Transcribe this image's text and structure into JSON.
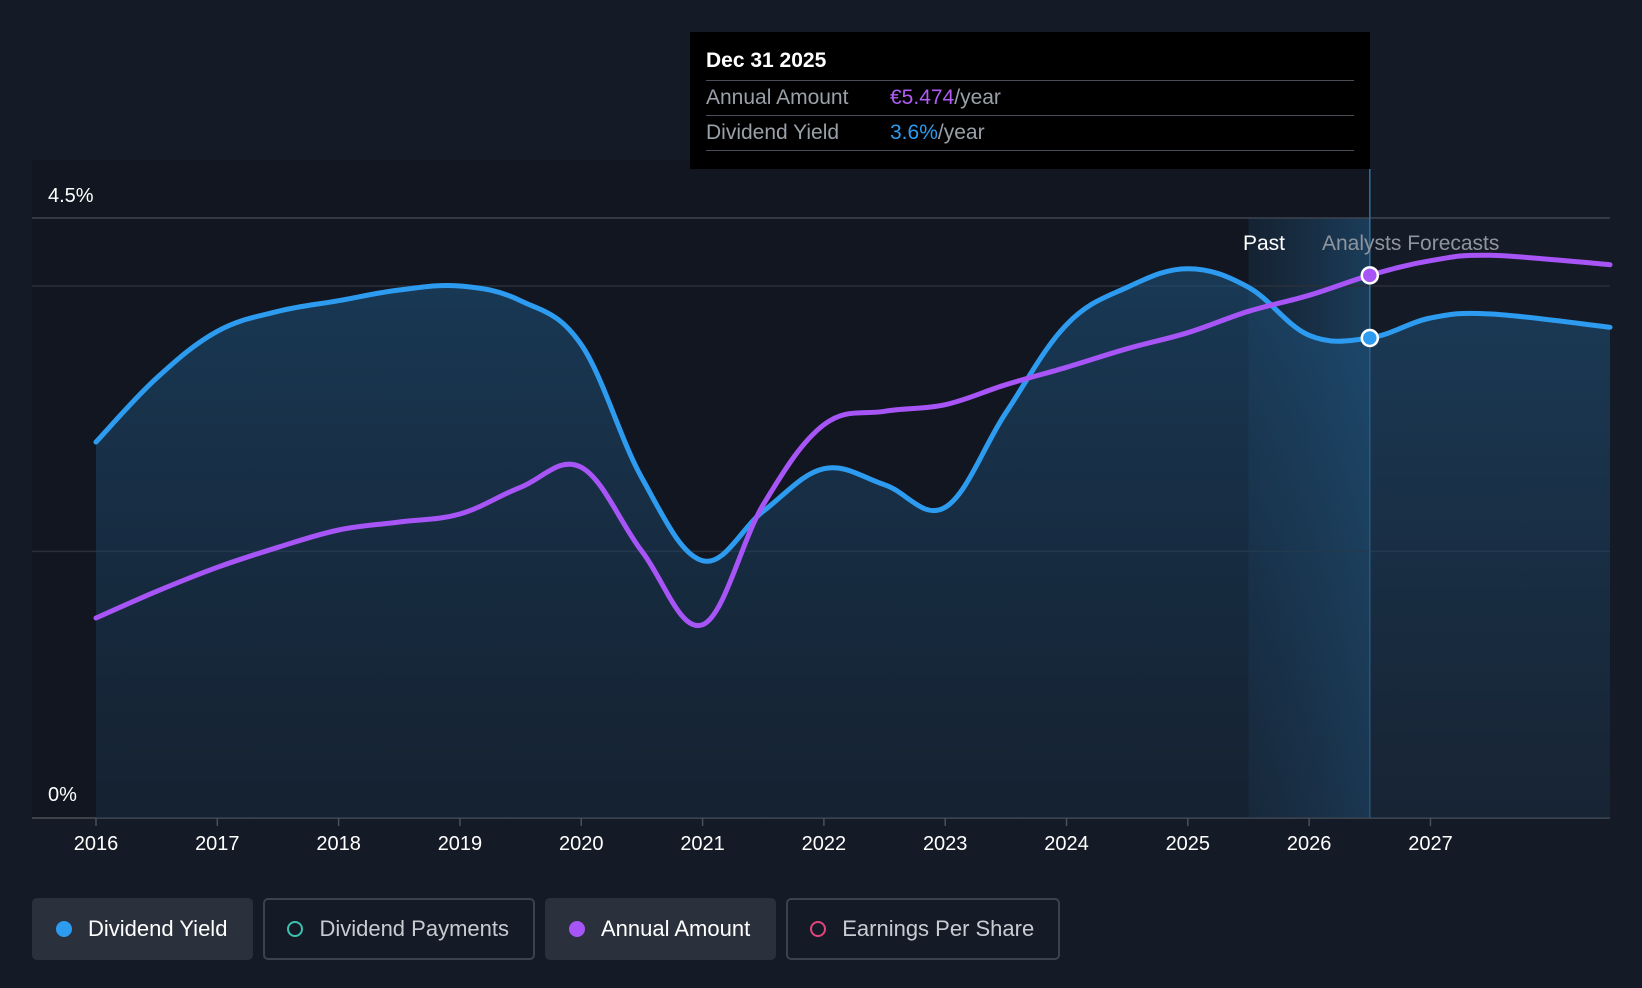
{
  "tooltip": {
    "date": "Dec 31 2025",
    "annual_label": "Annual Amount",
    "annual_value": "€5.474",
    "annual_unit": "/year",
    "yield_label": "Dividend Yield",
    "yield_value": "3.6%",
    "yield_unit": "/year"
  },
  "regions": {
    "past_label": "Past",
    "forecast_label": "Analysts Forecasts"
  },
  "legend": [
    {
      "label": "Dividend Yield",
      "color": "#2d9cf0",
      "active": true
    },
    {
      "label": "Dividend Payments",
      "color": "#3cc0b0",
      "active": false
    },
    {
      "label": "Annual Amount",
      "color": "#a855f7",
      "active": true
    },
    {
      "label": "Earnings Per Share",
      "color": "#e0457b",
      "active": false
    }
  ],
  "chart_data": {
    "type": "line",
    "y_tick_labels": [
      "4.5%",
      "0%"
    ],
    "ylim": [
      0,
      4.5
    ],
    "xlim": [
      2015,
      2027.98
    ],
    "x_ticks": [
      2016,
      2017,
      2018,
      2019,
      2020,
      2021,
      2022,
      2023,
      2024,
      2025,
      2026,
      2027
    ],
    "tooltip_x": 2026,
    "past_band": [
      2025,
      2026
    ],
    "series": [
      {
        "name": "Dividend Yield",
        "color": "#2d9cf0",
        "axis": "percent",
        "filled": true,
        "x": [
          2015.5,
          2016,
          2016.5,
          2017,
          2017.5,
          2018,
          2018.5,
          2019,
          2019.5,
          2020,
          2020.5,
          2021,
          2021.5,
          2022,
          2022.5,
          2023,
          2023.5,
          2024,
          2024.5,
          2025,
          2025.5,
          2026,
          2026.5,
          2027,
          2027.98
        ],
        "y": [
          2.82,
          3.3,
          3.65,
          3.8,
          3.88,
          3.96,
          3.99,
          3.88,
          3.55,
          2.55,
          1.93,
          2.3,
          2.62,
          2.5,
          2.33,
          3.04,
          3.7,
          3.98,
          4.12,
          3.98,
          3.62,
          3.6,
          3.75,
          3.78,
          3.68
        ]
      },
      {
        "name": "Annual Amount",
        "color": "#a855f7",
        "axis": "amount",
        "filled": false,
        "x": [
          2015.5,
          2016,
          2016.5,
          2017,
          2017.5,
          2018,
          2018.5,
          2019,
          2019.5,
          2020,
          2020.5,
          2021,
          2021.5,
          2022,
          2022.5,
          2023,
          2023.5,
          2024,
          2024.5,
          2025,
          2025.5,
          2026,
          2026.5,
          2027,
          2027.98
        ],
        "y": [
          1.5,
          1.7,
          1.88,
          2.03,
          2.16,
          2.22,
          2.28,
          2.48,
          2.63,
          2.0,
          1.45,
          2.35,
          2.95,
          3.05,
          3.1,
          3.25,
          3.38,
          3.52,
          3.64,
          3.8,
          3.92,
          4.07,
          4.18,
          4.22,
          4.15
        ]
      }
    ]
  }
}
